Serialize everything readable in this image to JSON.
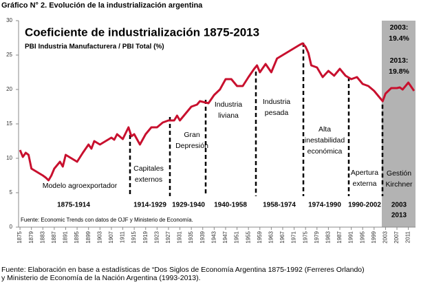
{
  "header": "Gráfico N° 2. Evolución de la industrialización argentina",
  "chart_data": {
    "type": "line",
    "title": "Coeficiente de industrialización 1875-2013",
    "subtitle": "PBI Industria Manufacturera / PBI Total (%)",
    "x": [
      1875,
      1876,
      1877,
      1878,
      1879,
      1881,
      1883,
      1884,
      1885,
      1886,
      1887,
      1889,
      1890,
      1891,
      1893,
      1895,
      1897,
      1899,
      1900,
      1901,
      1903,
      1905,
      1907,
      1908,
      1909,
      1911,
      1913,
      1914,
      1915,
      1917,
      1919,
      1921,
      1923,
      1925,
      1927,
      1929,
      1930,
      1931,
      1933,
      1935,
      1937,
      1938,
      1939,
      1941,
      1943,
      1945,
      1947,
      1949,
      1951,
      1953,
      1955,
      1957,
      1958,
      1959,
      1961,
      1963,
      1965,
      1967,
      1969,
      1971,
      1973,
      1974,
      1975,
      1976,
      1977,
      1979,
      1981,
      1983,
      1985,
      1987,
      1989,
      1991,
      1993,
      1995,
      1997,
      1999,
      2001,
      2002,
      2003,
      2005,
      2007,
      2008,
      2009,
      2010,
      2011,
      2013
    ],
    "series": [
      {
        "color": "#c8102e",
        "values": [
          11.2,
          10.2,
          10.8,
          10.5,
          8.5,
          8,
          7.5,
          7.2,
          6.8,
          7.5,
          8.5,
          9.5,
          8.8,
          10.5,
          10,
          9.5,
          10.8,
          12,
          11.4,
          12.5,
          12,
          12.5,
          13,
          12.7,
          13.5,
          12.8,
          14.5,
          13.2,
          13.5,
          12,
          13.5,
          14.5,
          14.5,
          15.2,
          15.5,
          15.5,
          16.2,
          15.5,
          16.5,
          17.5,
          17.8,
          18.3,
          18.2,
          18,
          19.2,
          20,
          21.5,
          21.5,
          20.5,
          20.5,
          21.8,
          23,
          23.5,
          22.5,
          23.7,
          22.5,
          24.5,
          25,
          25.5,
          26,
          26.5,
          26.7,
          26.2,
          25.3,
          23.5,
          23.2,
          21.8,
          22.7,
          22,
          23,
          22,
          21.5,
          21.8,
          20.8,
          20.5,
          19.8,
          18.8,
          18.3,
          19.4,
          20.2,
          20.2,
          20.3,
          20,
          20.5,
          21,
          19.8
        ]
      }
    ],
    "xlim": [
      1874.5,
      2013.5
    ],
    "xticks": [
      1875,
      1879,
      1883,
      1887,
      1891,
      1895,
      1899,
      1903,
      1907,
      1911,
      1915,
      1919,
      1923,
      1927,
      1931,
      1935,
      1939,
      1943,
      1947,
      1951,
      1955,
      1959,
      1963,
      1967,
      1971,
      1975,
      1979,
      1983,
      1987,
      1991,
      1995,
      1999,
      2003,
      2007,
      2011
    ],
    "ylim": [
      0,
      30
    ],
    "yticks": [
      0,
      5,
      10,
      15,
      20,
      25,
      30
    ],
    "annotations": [
      [
        "Modelo agroexportador"
      ],
      [
        "Capitales",
        "externos"
      ],
      [
        "Gran",
        "Depresión"
      ],
      [
        "Industria",
        "liviana"
      ],
      [
        "Industria",
        "pesada"
      ],
      [
        "Alta",
        "inestabilidad",
        "económica"
      ],
      [
        "Apertura",
        "externa"
      ],
      [
        "Gestión",
        "Kirchner"
      ],
      [
        "2003:",
        "19.4%"
      ],
      [
        "2013:",
        "19.8%"
      ]
    ],
    "periods": [
      [
        "1875-1914"
      ],
      [
        "1914-1929"
      ],
      [
        "1929-1940"
      ],
      [
        "1940-1958"
      ],
      [
        "1958-1974"
      ],
      [
        "1974-1990"
      ],
      [
        "1990-2002"
      ],
      [
        "2003",
        "2013"
      ]
    ],
    "note": "Fuente: Economic Trends con datos de OJF y Ministerio de Economía."
  },
  "footer": [
    "Fuente: Elaboración en base a estadísticas de “Dos Siglos de Economía Argentina 1875-1992 (Ferreres Orlando)",
    "y Ministerio de Economía de la Nación Argentina (1993-2013)."
  ]
}
